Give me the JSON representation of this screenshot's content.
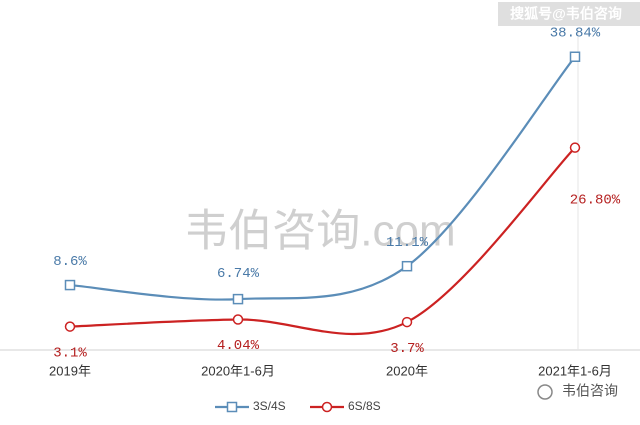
{
  "chart_data": {
    "type": "line",
    "categories": [
      "2019年",
      "2020年1-6月",
      "2020年",
      "2021年1-6月"
    ],
    "series": [
      {
        "name": "3S/4S",
        "color": "#5b8db8",
        "marker": "square",
        "values": [
          8.6,
          6.74,
          11.1,
          38.84
        ],
        "value_labels": [
          "8.6%",
          "6.74%",
          "11.1%",
          "38.84%"
        ]
      },
      {
        "name": "6S/8S",
        "color": "#cc2222",
        "marker": "circle",
        "values": [
          3.1,
          4.04,
          3.7,
          26.8
        ],
        "value_labels": [
          "3.1%",
          "4.04%",
          "3.7%",
          "26.80%"
        ]
      }
    ],
    "legend": "bottom",
    "watermarks": [
      "韦伯咨询.com",
      "搜狐号@韦伯咨询",
      "韦伯咨询"
    ]
  }
}
